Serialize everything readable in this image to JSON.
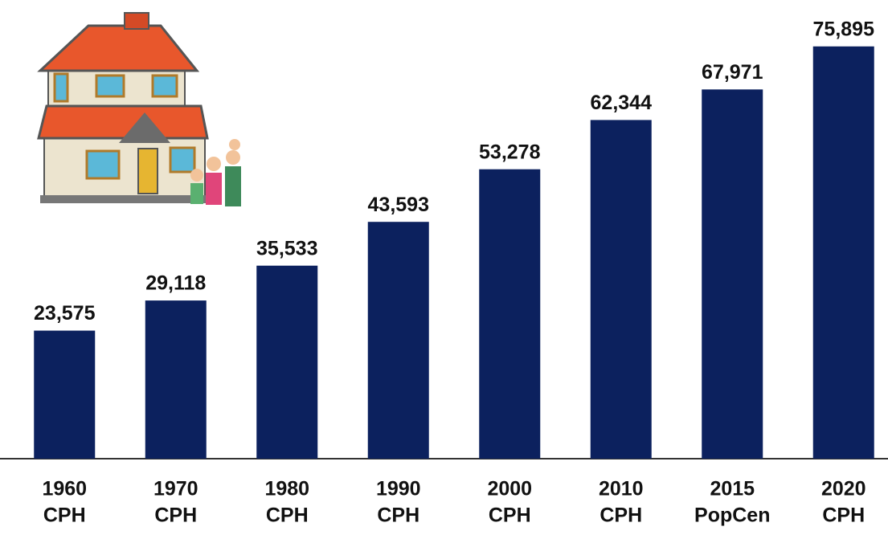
{
  "chart_data": {
    "type": "bar",
    "categories": [
      [
        "1960",
        "CPH"
      ],
      [
        "1970",
        "CPH"
      ],
      [
        "1980",
        "CPH"
      ],
      [
        "1990",
        "CPH"
      ],
      [
        "2000",
        "CPH"
      ],
      [
        "2010",
        "CPH"
      ],
      [
        "2015",
        "PopCen"
      ],
      [
        "2020",
        "CPH"
      ]
    ],
    "values": [
      23575,
      29118,
      35533,
      43593,
      53278,
      62344,
      67971,
      75895
    ],
    "value_labels": [
      "23,575",
      "29,118",
      "35,533",
      "43,593",
      "53,278",
      "62,344",
      "67,971",
      "75,895"
    ],
    "color": "#0c215e",
    "ylim": [
      0,
      80000
    ]
  }
}
